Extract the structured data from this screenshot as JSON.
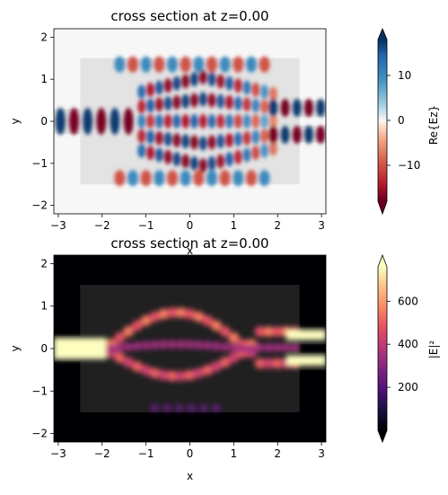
{
  "chart_data": [
    {
      "type": "heatmap",
      "title": "cross section at z=0.00",
      "xlabel": "x",
      "ylabel": "y",
      "xlim": [
        -3.1,
        3.1
      ],
      "ylim": [
        -2.2,
        2.2
      ],
      "xticks": [
        "−3",
        "−2",
        "−1",
        "0",
        "1",
        "2",
        "3"
      ],
      "yticks": [
        "−2",
        "−1",
        "0",
        "1",
        "2"
      ],
      "colorbar": {
        "label": "Re{Ez}",
        "range": [
          -18,
          18
        ],
        "ticks": [
          "−10",
          "0",
          "10"
        ],
        "tick_values": [
          -10,
          0,
          10
        ],
        "colormap": "RdBu",
        "extend": "both"
      },
      "structure": {
        "input_waveguide": {
          "x": [
            -3.1,
            -2.5
          ],
          "y": [
            -0.3,
            0.3
          ]
        },
        "mmi_region": {
          "x": [
            -2.5,
            2.5
          ],
          "y": [
            -1.5,
            1.5
          ]
        },
        "output_waveguides": [
          {
            "x": [
              2.5,
              3.1
            ],
            "y": [
              0.1,
              0.5
            ]
          },
          {
            "x": [
              2.5,
              3.1
            ],
            "y": [
              -0.5,
              -0.1
            ]
          }
        ]
      }
    },
    {
      "type": "heatmap",
      "title": "cross section at z=0.00",
      "xlabel": "x",
      "ylabel": "y",
      "xlim": [
        -3.1,
        3.1
      ],
      "ylim": [
        -2.2,
        2.2
      ],
      "xticks": [
        "−3",
        "−2",
        "−1",
        "0",
        "1",
        "2",
        "3"
      ],
      "yticks": [
        "−2",
        "−1",
        "0",
        "1",
        "2"
      ],
      "colorbar": {
        "label": "|E|²",
        "range": [
          0,
          760
        ],
        "ticks": [
          "200",
          "400",
          "600"
        ],
        "tick_values": [
          200,
          400,
          600
        ],
        "colormap": "magma",
        "extend": "both"
      },
      "structure": {
        "input_waveguide": {
          "x": [
            -3.1,
            -2.5
          ],
          "y": [
            -0.3,
            0.3
          ]
        },
        "mmi_region": {
          "x": [
            -2.5,
            2.5
          ],
          "y": [
            -1.5,
            1.5
          ]
        },
        "output_waveguides": [
          {
            "x": [
              2.5,
              3.1
            ],
            "y": [
              0.1,
              0.5
            ]
          },
          {
            "x": [
              2.5,
              3.1
            ],
            "y": [
              -0.5,
              -0.1
            ]
          }
        ]
      }
    }
  ]
}
